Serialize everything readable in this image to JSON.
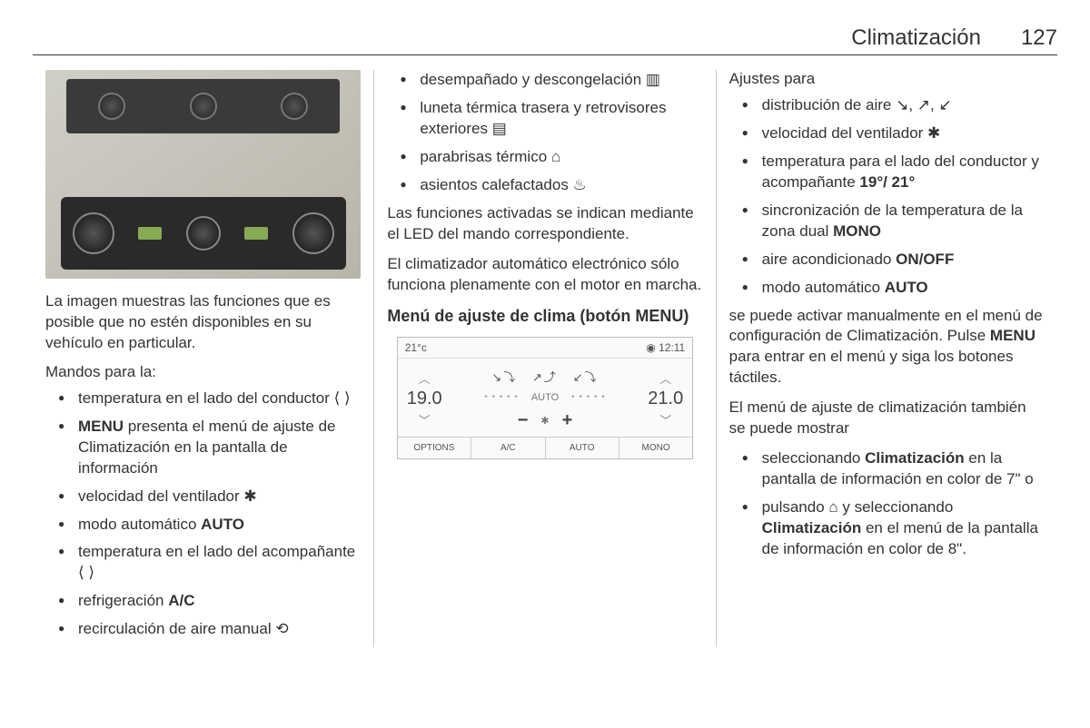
{
  "header": {
    "title": "Climatización",
    "page": "127"
  },
  "col1": {
    "caption": "La imagen muestras las funciones que es posible que no estén disponibles en su vehículo en particular.",
    "list_head": "Mandos para la:",
    "items": [
      {
        "text": "temperatura en el lado del conductor ⟨ ⟩"
      },
      {
        "html": "<span class='bold'>MENU</span> presenta el menú de ajuste de Climatización en la pantalla de información"
      },
      {
        "text": "velocidad del ventilador ✱"
      },
      {
        "html": "modo automático <span class='bold'>AUTO</span>"
      },
      {
        "text": "temperatura en el lado del acompañante ⟨ ⟩"
      },
      {
        "html": "refrigeración <span class='bold'>A/C</span>"
      },
      {
        "text": "recirculación de aire manual ⟲"
      }
    ]
  },
  "col2": {
    "top_items": [
      {
        "text": "desempañado y descongelación ▥"
      },
      {
        "text": "luneta térmica trasera y retrovisores exteriores ▤"
      },
      {
        "text": "parabrisas térmico ⌂"
      },
      {
        "text": "asientos calefactados ♨"
      }
    ],
    "para1": "Las funciones activadas se indican mediante el LED del mando correspondiente.",
    "para2": "El climatizador automático electrónico sólo funciona plenamente con el motor en marcha.",
    "subhead": "Menú de ajuste de clima (botón MENU)",
    "screen": {
      "lefttop": "21°c",
      "time": "12:11",
      "tempL": "19.0",
      "tempR": "21.0",
      "auto": "AUTO",
      "tabs": [
        "OPTIONS",
        "A/C",
        "AUTO",
        "MONO"
      ]
    }
  },
  "col3": {
    "list_head": "Ajustes para",
    "items": [
      {
        "text": "distribución de aire ↘, ↗, ↙"
      },
      {
        "text": "velocidad del ventilador ✱"
      },
      {
        "html": "temperatura para el lado del conductor y acompañante <span class='bold'>19°/ 21°</span>"
      },
      {
        "html": "sincronización de la temperatura de la zona dual <span class='bold'>MONO</span>"
      },
      {
        "html": "aire acondicionado <span class='bold'>ON/OFF</span>"
      },
      {
        "html": "modo automático <span class='bold'>AUTO</span>"
      }
    ],
    "para1_html": "se puede activar manualmente en el menú de configuración de Climatización. Pulse <span class='bold'>MENU</span> para entrar en el menú y siga los botones táctiles.",
    "para2": "El menú de ajuste de climatización también se puede mostrar",
    "items2": [
      {
        "html": "seleccionando <span class='bold'>Climatización</span> en la pantalla de información en color de 7\" o"
      },
      {
        "html": "pulsando ⌂ y seleccionando <span class='bold'>Climatización</span> en el menú de la pantalla de información en color de 8\"."
      }
    ]
  }
}
